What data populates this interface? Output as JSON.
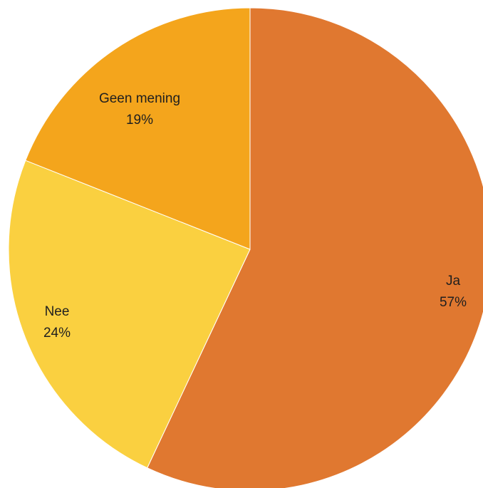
{
  "chart_data": {
    "type": "pie",
    "title": "",
    "start_angle_deg": 0,
    "direction": "clockwise",
    "slices": [
      {
        "category": "Ja",
        "value": 57,
        "percent_label": "57%",
        "color": "#e07830"
      },
      {
        "category": "Nee",
        "value": 24,
        "percent_label": "24%",
        "color": "#fad040"
      },
      {
        "category": "Geen mening",
        "value": 19,
        "percent_label": "19%",
        "color": "#f4a51c"
      }
    ],
    "legend": "none",
    "data_labels": "category-and-percent"
  }
}
